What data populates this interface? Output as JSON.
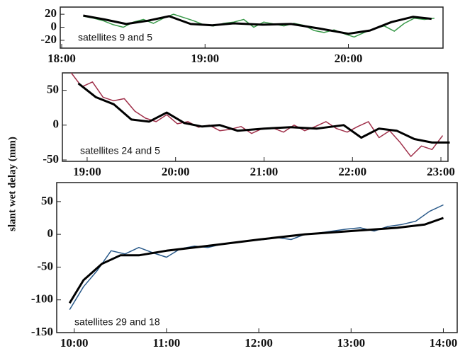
{
  "chart_data": [
    {
      "type": "line",
      "annotation": "satellites 9 and 5",
      "xlim": [
        17.99,
        20.66
      ],
      "ylim": [
        -32,
        31
      ],
      "xticks": [
        {
          "value": 18,
          "label": "18:00"
        },
        {
          "value": 19,
          "label": "19:00"
        },
        {
          "value": 20,
          "label": "20:00"
        }
      ],
      "yticks": [
        -20,
        0,
        20
      ],
      "series": [
        {
          "color": "#3a9a4a",
          "x": [
            18.15,
            18.22,
            18.29,
            18.36,
            18.43,
            18.5,
            18.57,
            18.64,
            18.71,
            18.78,
            18.85,
            18.92,
            18.99,
            19.06,
            19.13,
            19.2,
            19.27,
            19.34,
            19.41,
            19.48,
            19.55,
            19.62,
            19.69,
            19.76,
            19.83,
            19.9,
            19.97,
            20.04,
            20.11,
            20.18,
            20.25,
            20.32,
            20.39,
            20.46,
            20.53,
            20.6
          ],
          "values": [
            17,
            14,
            10,
            4,
            0,
            8,
            12,
            6,
            14,
            20,
            15,
            10,
            4,
            2,
            6,
            8,
            12,
            0,
            8,
            5,
            2,
            6,
            3,
            -5,
            -8,
            -4,
            -10,
            -15,
            -8,
            -2,
            2,
            -6,
            6,
            14,
            12,
            14
          ]
        },
        {
          "color": "#000000",
          "x": [
            18.15,
            18.3,
            18.45,
            18.6,
            18.75,
            18.9,
            19.05,
            19.2,
            19.4,
            19.6,
            19.8,
            20.0,
            20.15,
            20.3,
            20.45,
            20.58
          ],
          "values": [
            18,
            12,
            5,
            10,
            17,
            5,
            3,
            6,
            4,
            5,
            -2,
            -10,
            -5,
            8,
            16,
            13
          ]
        }
      ]
    },
    {
      "type": "line",
      "annotation": "satellites 24 and 5",
      "ylabel": "slant wet delay (mm)",
      "xlim": [
        18.72,
        23.08
      ],
      "ylim": [
        -52,
        75
      ],
      "xticks": [
        {
          "value": 19,
          "label": "19:00"
        },
        {
          "value": 20,
          "label": "20:00"
        },
        {
          "value": 21,
          "label": "21:00"
        },
        {
          "value": 22,
          "label": "22:00"
        },
        {
          "value": 23,
          "label": "23:00"
        }
      ],
      "yticks": [
        -50,
        0,
        50
      ],
      "series": [
        {
          "color": "#a0304a",
          "x": [
            18.82,
            18.94,
            19.06,
            19.18,
            19.3,
            19.42,
            19.54,
            19.66,
            19.78,
            19.9,
            20.02,
            20.14,
            20.26,
            20.38,
            20.5,
            20.62,
            20.74,
            20.86,
            20.98,
            21.1,
            21.22,
            21.34,
            21.46,
            21.58,
            21.7,
            21.82,
            21.94,
            22.06,
            22.18,
            22.3,
            22.42,
            22.54,
            22.66,
            22.78,
            22.9,
            23.02
          ],
          "values": [
            75,
            55,
            62,
            40,
            35,
            38,
            20,
            10,
            5,
            15,
            2,
            5,
            -3,
            0,
            -8,
            -6,
            -2,
            -12,
            -5,
            -4,
            -10,
            0,
            -8,
            -2,
            5,
            -5,
            -10,
            -2,
            5,
            -18,
            -8,
            -25,
            -45,
            -30,
            -35,
            -15
          ]
        },
        {
          "color": "#000000",
          "x": [
            18.9,
            19.1,
            19.3,
            19.5,
            19.7,
            19.9,
            20.1,
            20.3,
            20.5,
            20.7,
            21.0,
            21.3,
            21.6,
            21.9,
            22.1,
            22.3,
            22.5,
            22.7,
            22.9,
            23.1
          ],
          "values": [
            60,
            40,
            30,
            8,
            5,
            18,
            3,
            -2,
            0,
            -8,
            -5,
            -3,
            -5,
            0,
            -18,
            -5,
            -8,
            -20,
            -25,
            -25
          ]
        }
      ]
    },
    {
      "type": "line",
      "annotation": "satellites 29 and 18",
      "xlim": [
        9.81,
        14.15
      ],
      "ylim": [
        -150,
        79
      ],
      "xticks": [
        {
          "value": 10,
          "label": "10:00"
        },
        {
          "value": 11,
          "label": "11:00"
        },
        {
          "value": 12,
          "label": "12:00"
        },
        {
          "value": 13,
          "label": "13:00"
        },
        {
          "value": 14,
          "label": "14:00"
        }
      ],
      "yticks": [
        -150,
        -100,
        -50,
        0,
        50
      ],
      "series": [
        {
          "color": "#2a5a8a",
          "x": [
            9.95,
            10.1,
            10.25,
            10.4,
            10.55,
            10.7,
            10.85,
            11.0,
            11.15,
            11.3,
            11.45,
            11.6,
            11.75,
            11.9,
            12.05,
            12.2,
            12.35,
            12.5,
            12.65,
            12.8,
            12.95,
            13.1,
            13.25,
            13.4,
            13.55,
            13.7,
            13.85,
            14.0
          ],
          "values": [
            -115,
            -80,
            -55,
            -25,
            -30,
            -20,
            -28,
            -35,
            -22,
            -18,
            -20,
            -15,
            -12,
            -10,
            -8,
            -5,
            -8,
            0,
            2,
            5,
            8,
            10,
            5,
            12,
            15,
            20,
            35,
            45
          ]
        },
        {
          "color": "#000000",
          "x": [
            9.95,
            10.1,
            10.3,
            10.5,
            10.7,
            11.0,
            11.3,
            11.6,
            12.0,
            12.5,
            13.0,
            13.5,
            13.8,
            14.0
          ],
          "values": [
            -105,
            -70,
            -45,
            -32,
            -32,
            -25,
            -20,
            -15,
            -8,
            0,
            5,
            10,
            15,
            25
          ]
        }
      ]
    }
  ]
}
